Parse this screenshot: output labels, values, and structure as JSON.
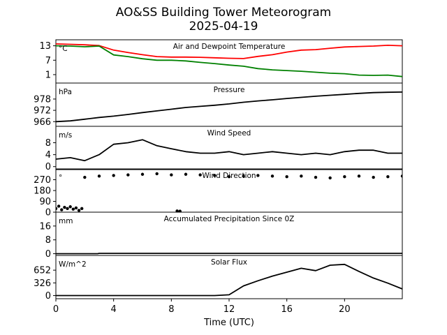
{
  "figure": {
    "title": "AO&SS Building Tower Meteorogram",
    "date": "2025-04-19",
    "xlabel": "Time (UTC)"
  },
  "colors": {
    "red": "#ff0000",
    "green": "#008000",
    "black": "#000000"
  },
  "chart_data": [
    {
      "type": "line",
      "title": "Air and Dewpoint Temperature",
      "unit_label": "°C",
      "ylim": [
        -2.5,
        15.5
      ],
      "yticks": [
        1,
        7,
        13
      ],
      "x": [
        0,
        1,
        2,
        3,
        4,
        5,
        6,
        7,
        8,
        9,
        10,
        11,
        12,
        13,
        14,
        15,
        16,
        17,
        18,
        19,
        20,
        21,
        22,
        23,
        24
      ],
      "series": [
        {
          "color": "#ff0000",
          "values": [
            13.8,
            13.6,
            13.4,
            13.1,
            11.2,
            10.2,
            9.3,
            8.5,
            8.3,
            8.3,
            8.2,
            8.0,
            7.8,
            7.7,
            8.6,
            9.3,
            10.4,
            11.2,
            11.4,
            12.0,
            12.5,
            12.7,
            12.9,
            13.2,
            13.0
          ]
        },
        {
          "color": "#008000",
          "values": [
            13.0,
            12.9,
            12.6,
            12.9,
            9.2,
            8.5,
            7.6,
            7.0,
            7.0,
            6.7,
            6.1,
            5.6,
            5.0,
            4.5,
            3.5,
            3.0,
            2.7,
            2.4,
            2.0,
            1.6,
            1.4,
            0.8,
            0.7,
            0.8,
            0.2
          ]
        }
      ]
    },
    {
      "type": "line",
      "title": "Pressure",
      "unit_label": "hPa",
      "ylim": [
        963.5,
        986.5
      ],
      "yticks": [
        966,
        972,
        978
      ],
      "x": [
        0,
        1,
        2,
        3,
        4,
        5,
        6,
        7,
        8,
        9,
        10,
        11,
        12,
        13,
        14,
        15,
        16,
        17,
        18,
        19,
        20,
        21,
        22,
        23,
        24
      ],
      "series": [
        {
          "color": "#000000",
          "values": [
            966.0,
            966.4,
            967.3,
            968.2,
            968.9,
            969.8,
            970.8,
            971.7,
            972.6,
            973.5,
            974.1,
            974.7,
            975.4,
            976.3,
            977.0,
            977.6,
            978.3,
            978.9,
            979.5,
            980.0,
            980.5,
            981.0,
            981.4,
            981.6,
            981.7
          ]
        }
      ]
    },
    {
      "type": "line",
      "title": "Wind Speed",
      "unit_label": "m/s",
      "ylim": [
        -1.0,
        13.5
      ],
      "yticks": [
        0,
        4,
        8
      ],
      "x": [
        0,
        1,
        2,
        3,
        4,
        5,
        6,
        7,
        8,
        9,
        10,
        11,
        12,
        13,
        14,
        15,
        16,
        17,
        18,
        19,
        20,
        21,
        22,
        23,
        24
      ],
      "series": [
        {
          "color": "#000000",
          "values": [
            2.5,
            3.0,
            2.0,
            4.0,
            7.5,
            8.0,
            9.0,
            7.0,
            6.0,
            5.0,
            4.5,
            4.5,
            5.0,
            4.0,
            4.5,
            5.0,
            4.5,
            4.0,
            4.5,
            4.0,
            5.0,
            5.5,
            5.5,
            4.5,
            4.5
          ]
        }
      ]
    },
    {
      "type": "scatter",
      "title": "Wind Direction",
      "unit_label": "°",
      "ylim": [
        0,
        360
      ],
      "yticks": [
        0,
        90,
        180,
        270
      ],
      "x": [
        0.0,
        0.2,
        0.4,
        0.6,
        0.8,
        1.0,
        1.2,
        1.4,
        1.6,
        1.8,
        2.0,
        3.0,
        4.0,
        5.0,
        6.0,
        7.0,
        8.0,
        8.4,
        8.6,
        9.0,
        10.0,
        11.0,
        12.0,
        13.0,
        14.0,
        15.0,
        16.0,
        17.0,
        18.0,
        19.0,
        20.0,
        21.0,
        22.0,
        23.0,
        24.0
      ],
      "series": [
        {
          "color": "#000000",
          "values": [
            30,
            50,
            20,
            40,
            30,
            45,
            25,
            35,
            15,
            30,
            290,
            300,
            305,
            310,
            315,
            320,
            310,
            10,
            8,
            315,
            310,
            305,
            295,
            300,
            305,
            300,
            295,
            300,
            290,
            285,
            295,
            300,
            290,
            295,
            300
          ]
        }
      ]
    },
    {
      "type": "line",
      "title": "Accumulated Precipitation Since 0Z",
      "unit_label": "mm",
      "ylim": [
        -1.0,
        24.0
      ],
      "yticks": [
        0,
        8,
        16
      ],
      "x": [
        0,
        2.9,
        3.0,
        24
      ],
      "series": [
        {
          "color": "#000000",
          "values": [
            0.0,
            0.0,
            0.2,
            0.2
          ]
        }
      ]
    },
    {
      "type": "line",
      "title": "Solar Flux",
      "unit_label": "W/m^2",
      "ylim": [
        -80,
        1030
      ],
      "yticks": [
        0,
        326,
        652
      ],
      "x": [
        0,
        1,
        2,
        3,
        4,
        5,
        6,
        7,
        8,
        9,
        10,
        11,
        12,
        13,
        14,
        15,
        16,
        17,
        18,
        19,
        20,
        21,
        22,
        23,
        24
      ],
      "series": [
        {
          "color": "#000000",
          "values": [
            0,
            0,
            0,
            0,
            0,
            0,
            0,
            0,
            0,
            0,
            0,
            0,
            20,
            250,
            380,
            500,
            600,
            700,
            640,
            780,
            800,
            620,
            450,
            320,
            170
          ]
        }
      ]
    }
  ],
  "x_axis": {
    "xlim": [
      0,
      24
    ],
    "ticks": [
      0,
      4,
      8,
      12,
      16,
      20
    ]
  }
}
